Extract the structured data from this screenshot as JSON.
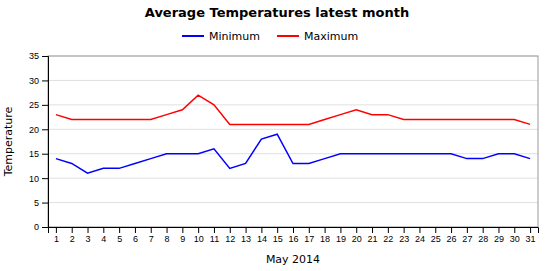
{
  "chart_data": {
    "type": "line",
    "title": "Average Temperatures latest month",
    "xlabel": "May 2014",
    "ylabel": "Temperature",
    "x": [
      1,
      2,
      3,
      4,
      5,
      6,
      7,
      8,
      9,
      10,
      11,
      12,
      13,
      14,
      15,
      16,
      17,
      18,
      19,
      20,
      21,
      22,
      23,
      24,
      25,
      26,
      27,
      28,
      29,
      30,
      31
    ],
    "xlim": [
      0.5,
      31.5
    ],
    "xticks": [
      1,
      2,
      3,
      4,
      5,
      6,
      7,
      8,
      9,
      10,
      11,
      12,
      13,
      14,
      15,
      16,
      17,
      18,
      19,
      20,
      21,
      22,
      23,
      24,
      25,
      26,
      27,
      28,
      29,
      30,
      31
    ],
    "ylim": [
      0,
      35
    ],
    "yticks": [
      0,
      5,
      10,
      15,
      20,
      25,
      30,
      35
    ],
    "grid": true,
    "legend": "top",
    "series": [
      {
        "name": "Minimum",
        "color": "blue",
        "values": [
          14,
          13,
          11,
          12,
          12,
          13,
          14,
          15,
          15,
          15,
          16,
          12,
          13,
          18,
          19,
          13,
          13,
          14,
          15,
          15,
          15,
          15,
          15,
          15,
          15,
          15,
          14,
          14,
          15,
          15,
          14
        ]
      },
      {
        "name": "Maximum",
        "color": "red",
        "values": [
          23,
          22,
          22,
          22,
          22,
          22,
          22,
          23,
          24,
          27,
          25,
          21,
          21,
          21,
          21,
          21,
          21,
          22,
          23,
          24,
          23,
          23,
          22,
          22,
          22,
          22,
          22,
          22,
          22,
          22,
          21
        ]
      }
    ]
  }
}
